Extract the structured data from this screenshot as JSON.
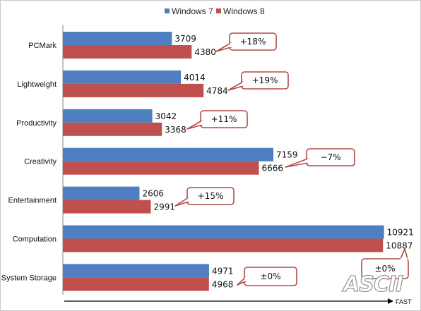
{
  "chart_data": {
    "type": "bar",
    "orientation": "horizontal",
    "categories": [
      "PCMark",
      "Lightweight",
      "Productivity",
      "Creativity",
      "Entertainment",
      "Computation",
      "System Storage"
    ],
    "series": [
      {
        "name": "Windows 7",
        "values": [
          3709,
          4014,
          3042,
          7159,
          2606,
          10921,
          4971
        ],
        "color": "#4f7fc0"
      },
      {
        "name": "Windows 8",
        "values": [
          4380,
          4784,
          3368,
          6666,
          2991,
          10887,
          4968
        ],
        "color": "#c0504d"
      }
    ],
    "callouts": [
      "+18%",
      "+19%",
      "+11%",
      "−7%",
      "+15%",
      "±0%",
      "±0%"
    ],
    "xlim": [
      0,
      11050
    ],
    "axis_arrow_label": "FAST",
    "legend_position": "top",
    "grid": false
  },
  "watermark": "ASCII"
}
